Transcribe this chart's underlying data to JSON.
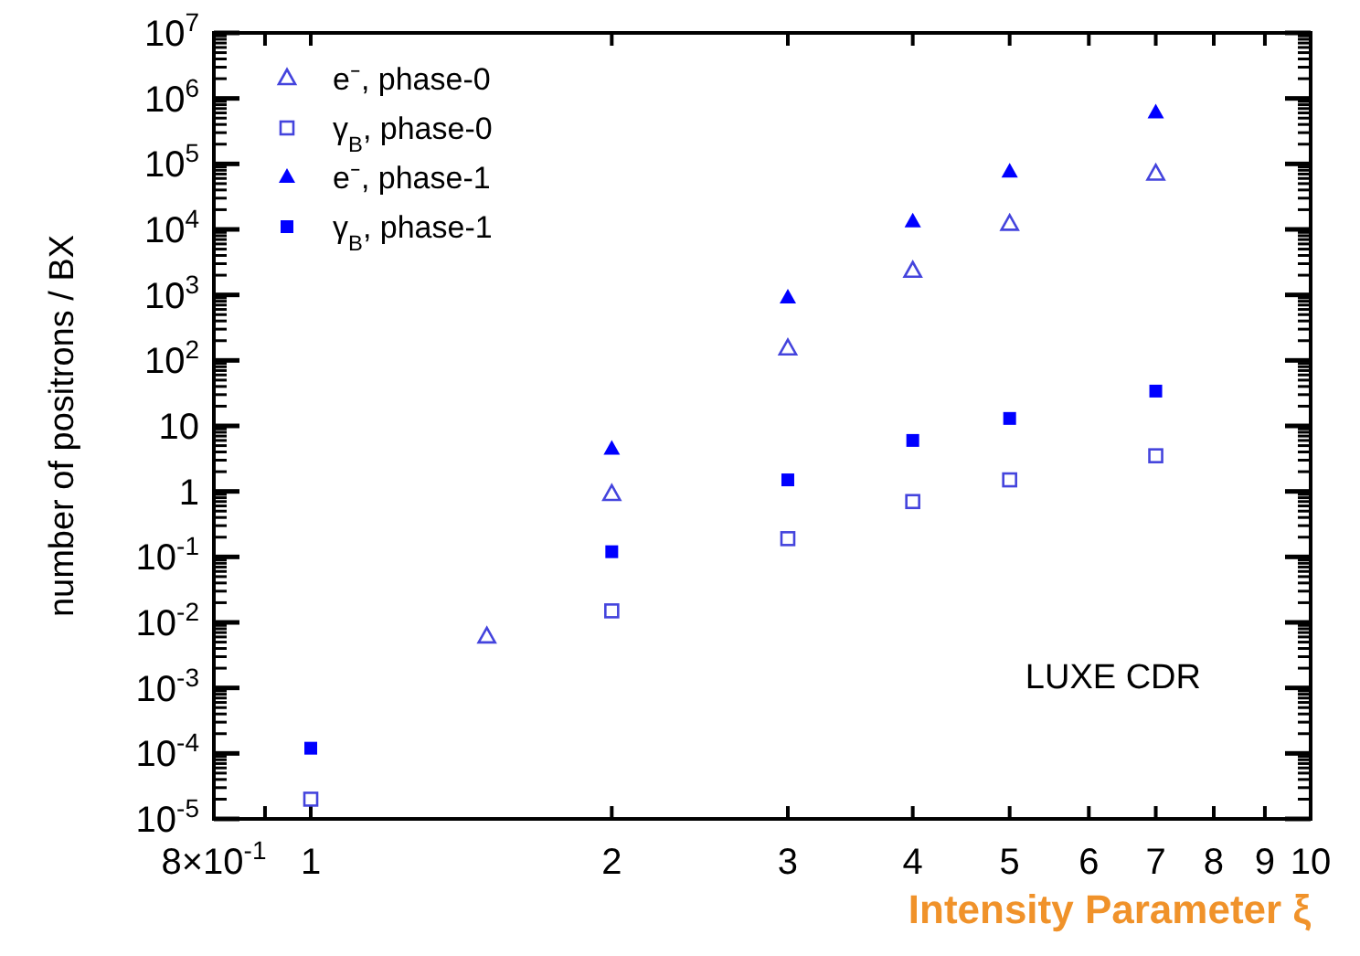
{
  "chart_data": {
    "type": "scatter",
    "xlabel": "Intensity Parameter ξ",
    "ylabel": "number of positrons / BX",
    "log": "xy",
    "xlim": [
      0.8,
      10
    ],
    "ylim": [
      1e-05,
      10000000.0
    ],
    "legend": "top left",
    "grid": false,
    "xticks": [
      {
        "value": 0.8,
        "label": "8×10$^{-1}$"
      },
      {
        "value": 0.9,
        "label": null
      },
      1,
      2,
      3,
      4,
      5,
      6,
      7,
      8,
      9,
      10
    ],
    "yticks": [
      {
        "value": 1e-05,
        "label": "10$^{-5}$"
      },
      {
        "value": 0.0001,
        "label": "10$^{-4}$"
      },
      {
        "value": 0.001,
        "label": "10$^{-3}$"
      },
      {
        "value": 0.01,
        "label": "10$^{-2}$"
      },
      {
        "value": 0.1,
        "label": "10$^{-1}$"
      },
      1,
      10,
      {
        "value": 100,
        "label": "10$^{2}$"
      },
      {
        "value": 1000,
        "label": "10$^{3}$"
      },
      {
        "value": 10000,
        "label": "10$^{4}$"
      },
      {
        "value": 100000,
        "label": "10$^{5}$"
      },
      {
        "value": 1000000,
        "label": "10$^{6}$"
      },
      {
        "value": 10000000,
        "label": "10$^{7}$"
      }
    ],
    "annotations": [
      "LUXE CDR"
    ],
    "series": [
      {
        "name": "e⁻, phase-0",
        "color": "#4444dd",
        "marker": "triangle",
        "x": [
          1.5,
          2,
          3,
          4,
          5,
          7
        ],
        "values": [
          0.006,
          0.9,
          150,
          2300,
          12000,
          70000
        ]
      },
      {
        "name": "γ$_{B}$, phase-0",
        "color": "#4444dd",
        "marker": "square",
        "x": [
          1,
          2,
          3,
          4,
          5,
          7
        ],
        "values": [
          2e-05,
          0.015,
          0.19,
          0.7,
          1.5,
          3.5
        ]
      },
      {
        "name": "e⁻, phase-1",
        "color": "#0000ff",
        "marker": "triangle",
        "x": [
          2,
          3,
          4,
          5,
          7
        ],
        "values": [
          4.4,
          900,
          13000,
          75000,
          600000
        ]
      },
      {
        "name": "γ$_{B}$, phase-1",
        "color": "#0000ff",
        "marker": "square",
        "x": [
          1,
          2,
          3,
          4,
          5,
          7
        ],
        "values": [
          0.00012,
          0.12,
          1.5,
          6,
          13,
          34
        ]
      }
    ]
  }
}
